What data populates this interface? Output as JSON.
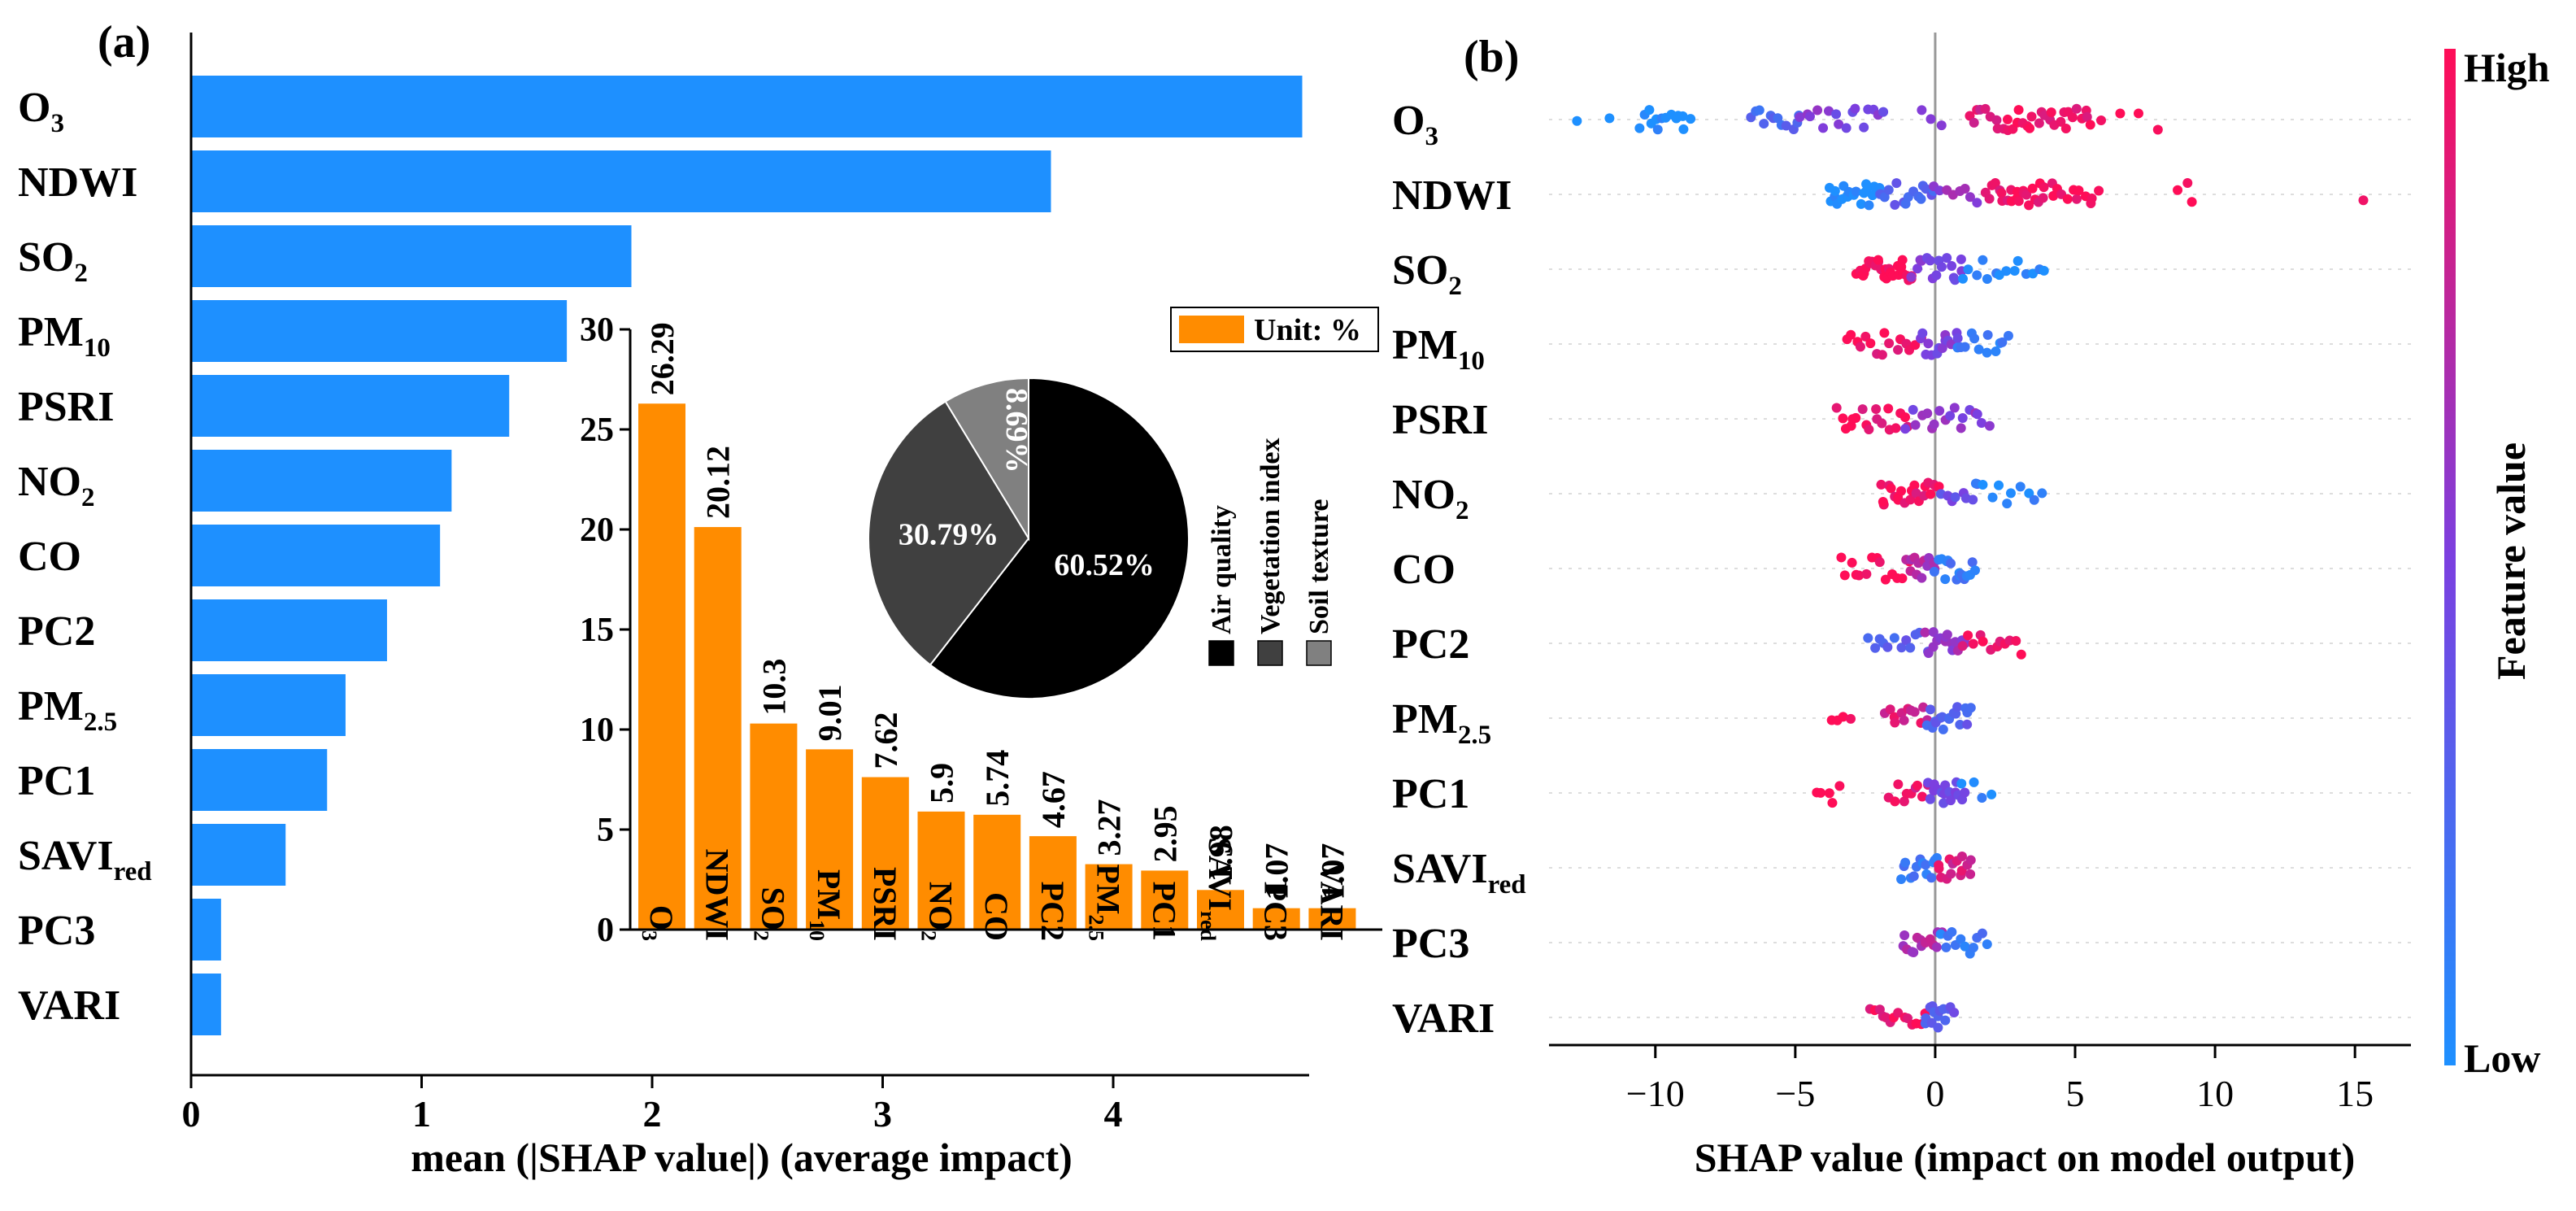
{
  "chart_data": [
    {
      "panel_label": "(a)",
      "type": "bar",
      "orientation": "horizontal",
      "xlabel": "mean (|SHAP value|) (average impact)",
      "xlim": [
        0,
        4.85
      ],
      "xticks": [
        "0",
        "1",
        "2",
        "3",
        "4"
      ],
      "color": "#1E90FF",
      "categories": [
        "O3",
        "NDWI",
        "SO2",
        "PM10",
        "PSRI",
        "NO2",
        "CO",
        "PC2",
        "PM2.5",
        "PC1",
        "SAVIred",
        "PC3",
        "VARI"
      ],
      "category_labels": [
        {
          "base": "O",
          "sub": "3"
        },
        {
          "base": "NDWI",
          "sub": ""
        },
        {
          "base": "SO",
          "sub": "2"
        },
        {
          "base": "PM",
          "sub": "10"
        },
        {
          "base": "PSRI",
          "sub": ""
        },
        {
          "base": "NO",
          "sub": "2"
        },
        {
          "base": "CO",
          "sub": ""
        },
        {
          "base": "PC2",
          "sub": ""
        },
        {
          "base": "PM",
          "sub": "2.5"
        },
        {
          "base": "PC1",
          "sub": ""
        },
        {
          "base": "SAVI",
          "sub": "red"
        },
        {
          "base": "PC3",
          "sub": ""
        },
        {
          "base": "VARI",
          "sub": ""
        }
      ],
      "values": [
        4.82,
        3.73,
        1.91,
        1.63,
        1.38,
        1.13,
        1.08,
        0.85,
        0.67,
        0.59,
        0.41,
        0.13,
        0.13
      ]
    },
    {
      "type": "bar",
      "role": "inset",
      "color": "#FF8C00",
      "legend": "Unit: %",
      "ylim": [
        0,
        30
      ],
      "yticks": [
        "0",
        "5",
        "10",
        "15",
        "20",
        "25",
        "30"
      ],
      "categories": [
        "O3",
        "NDWI",
        "SO2",
        "PM10",
        "PSRI",
        "NO2",
        "CO",
        "PC2",
        "PM2.5",
        "PC1",
        "SAVIred",
        "PC3",
        "VARI"
      ],
      "values": [
        26.29,
        20.12,
        10.3,
        9.01,
        7.62,
        5.9,
        5.74,
        4.67,
        3.27,
        2.95,
        1.98,
        1.07,
        1.07
      ],
      "value_labels": [
        "26.29",
        "20.12",
        "10.3",
        "9.01",
        "7.62",
        "5.9",
        "5.74",
        "4.67",
        "3.27",
        "2.95",
        "1.98",
        "1.07",
        "1.07"
      ]
    },
    {
      "type": "pie",
      "role": "inset",
      "slices": [
        {
          "name": "Air quality",
          "value": 60.52,
          "label": "60.52%",
          "color": "#000000"
        },
        {
          "name": "Vegetation index",
          "value": 30.79,
          "label": "30.79%",
          "color": "#404040"
        },
        {
          "name": "Soil texture",
          "value": 8.69,
          "label": "8.69%",
          "color": "#808080"
        }
      ]
    },
    {
      "panel_label": "(b)",
      "type": "scatter",
      "subtype": "beeswarm",
      "xlabel": "SHAP value (impact on model output)",
      "xlim": [
        -13.8,
        17
      ],
      "xticks": [
        -10,
        -5,
        0,
        5,
        10,
        15
      ],
      "xtick_labels": [
        "−10",
        "−5",
        "0",
        "5",
        "10",
        "15"
      ],
      "colorbar": {
        "title": "Feature value",
        "high": "High",
        "low": "Low",
        "low_color": "#1E90FF",
        "high_color": "#FF0D57"
      },
      "features": [
        "O3",
        "NDWI",
        "SO2",
        "PM10",
        "PSRI",
        "NO2",
        "CO",
        "PC2",
        "PM2.5",
        "PC1",
        "SAVIred",
        "PC3",
        "VARI"
      ],
      "distributions": [
        {
          "clusters": [
            [
              -12.8,
              -11.6,
              0,
              2
            ],
            [
              -10.5,
              -8.8,
              0,
              14
            ],
            [
              -6.6,
              -4.8,
              0.25,
              12
            ],
            [
              -4.8,
              -1.8,
              0.5,
              16
            ],
            [
              -0.5,
              0.3,
              0.55,
              3
            ],
            [
              1.2,
              2.6,
              0.85,
              10
            ],
            [
              2.6,
              5.6,
              0.95,
              24
            ],
            [
              6.0,
              7.9,
              1.0,
              4
            ]
          ]
        },
        {
          "clusters": [
            [
              -3.8,
              -2.0,
              0.0,
              22
            ],
            [
              -2.0,
              0.0,
              0.3,
              16
            ],
            [
              0.0,
              1.5,
              0.6,
              8
            ],
            [
              1.8,
              3.8,
              0.95,
              22
            ],
            [
              3.8,
              5.8,
              1.0,
              14
            ],
            [
              8.7,
              9.2,
              1.0,
              3
            ],
            [
              15.3,
              15.3,
              1.0,
              1
            ]
          ]
        },
        {
          "clusters": [
            [
              -2.8,
              -0.8,
              1.0,
              28
            ],
            [
              -0.8,
              1.0,
              0.5,
              16
            ],
            [
              1.0,
              3.9,
              0.05,
              14
            ]
          ]
        },
        {
          "clusters": [
            [
              -3.2,
              -0.5,
              0.95,
              16
            ],
            [
              -0.5,
              0.8,
              0.5,
              14
            ],
            [
              0.8,
              2.6,
              0.1,
              12
            ]
          ]
        },
        {
          "clusters": [
            [
              -3.5,
              -1.0,
              0.95,
              18
            ],
            [
              -1.0,
              1.9,
              0.55,
              18
            ]
          ]
        },
        {
          "clusters": [
            [
              -2.0,
              0.2,
              0.95,
              22
            ],
            [
              0.2,
              1.5,
              0.4,
              8
            ],
            [
              1.5,
              3.8,
              0.05,
              10
            ]
          ]
        },
        {
          "clusters": [
            [
              -3.4,
              -1.0,
              1.0,
              14
            ],
            [
              -1.0,
              0.0,
              0.7,
              12
            ],
            [
              0.0,
              1.5,
              0.15,
              16
            ]
          ]
        },
        {
          "clusters": [
            [
              -2.4,
              -0.3,
              0.3,
              12
            ],
            [
              -0.3,
              1.0,
              0.6,
              16
            ],
            [
              1.0,
              3.1,
              0.95,
              12
            ]
          ]
        },
        {
          "clusters": [
            [
              -3.7,
              -3.0,
              1.0,
              4
            ],
            [
              -1.8,
              -0.3,
              0.85,
              12
            ],
            [
              -0.3,
              1.3,
              0.3,
              18
            ]
          ]
        },
        {
          "clusters": [
            [
              -4.3,
              -3.4,
              1.0,
              5
            ],
            [
              -1.6,
              -0.3,
              0.9,
              10
            ],
            [
              -0.3,
              1.0,
              0.45,
              18
            ],
            [
              1.0,
              2.0,
              0.05,
              4
            ]
          ]
        },
        {
          "clusters": [
            [
              -1.2,
              0.1,
              0.15,
              14
            ],
            [
              0.1,
              1.3,
              0.85,
              14
            ]
          ]
        },
        {
          "clusters": [
            [
              -1.2,
              0.2,
              0.7,
              14
            ],
            [
              0.2,
              1.8,
              0.15,
              12
            ]
          ]
        },
        {
          "clusters": [
            [
              -2.3,
              -0.4,
              0.95,
              14
            ],
            [
              -0.4,
              0.6,
              0.35,
              14
            ]
          ]
        }
      ]
    }
  ]
}
